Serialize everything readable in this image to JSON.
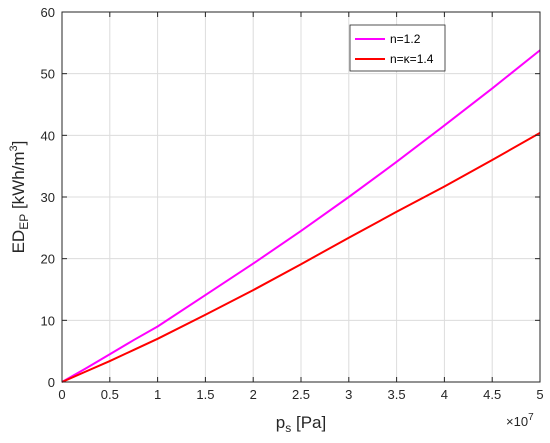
{
  "chart_data": {
    "type": "line",
    "xlabel": {
      "main": "p",
      "sub": "s",
      "unit": " [Pa]"
    },
    "ylabel": {
      "main": "ED",
      "sub": "EP",
      "unit_pre": " [kWh/m",
      "unit_sup": "3",
      "unit_post": "]"
    },
    "x_exponent": {
      "base": "×10",
      "power": "7"
    },
    "xlim": [
      0,
      5
    ],
    "ylim": [
      0,
      60
    ],
    "x_ticks": [
      0,
      0.5,
      1,
      1.5,
      2,
      2.5,
      3,
      3.5,
      4,
      4.5,
      5
    ],
    "y_ticks": [
      0,
      10,
      20,
      30,
      40,
      50,
      60
    ],
    "grid": true,
    "legend_position": "top-right",
    "series": [
      {
        "name": "n=1.2",
        "color": "#ff00ff",
        "x": [
          0,
          0.25,
          0.5,
          0.75,
          1,
          1.5,
          2,
          2.5,
          3,
          3.5,
          4,
          4.5,
          5
        ],
        "y": [
          0,
          2.2,
          4.5,
          6.8,
          9.0,
          14.1,
          19.2,
          24.5,
          30.0,
          35.7,
          41.6,
          47.6,
          53.8
        ]
      },
      {
        "name": "n=κ=1.4",
        "color": "#ff0000",
        "x": [
          0,
          0.25,
          0.5,
          0.75,
          1,
          1.5,
          2,
          2.5,
          3,
          3.5,
          4,
          4.5,
          5
        ],
        "y": [
          0,
          1.7,
          3.4,
          5.2,
          7.0,
          10.9,
          14.9,
          19.1,
          23.4,
          27.6,
          31.7,
          36.0,
          40.4
        ]
      }
    ]
  }
}
